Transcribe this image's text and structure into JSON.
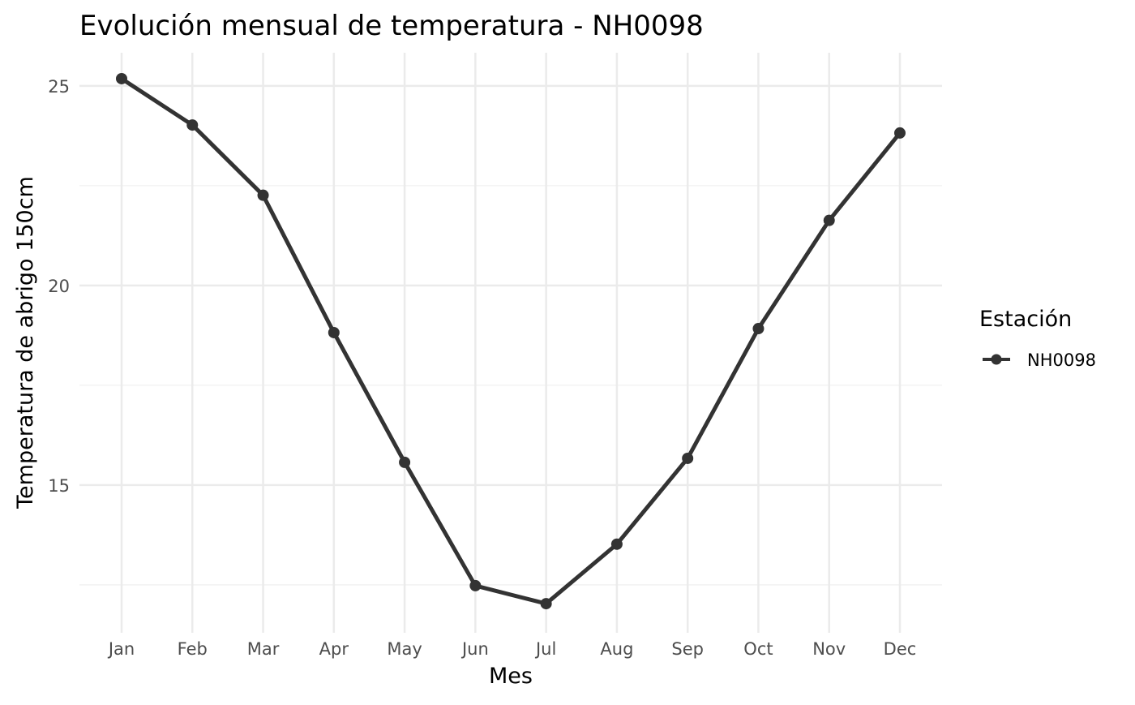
{
  "chart_data": {
    "type": "line",
    "title": "Evolución mensual de temperatura - NH0098",
    "xlabel": "Mes",
    "ylabel": "Temperatura de abrigo 150cm",
    "categories": [
      "Jan",
      "Feb",
      "Mar",
      "Apr",
      "May",
      "Jun",
      "Jul",
      "Aug",
      "Sep",
      "Oct",
      "Nov",
      "Dec"
    ],
    "series": [
      {
        "name": "NH0098",
        "color": "#333333",
        "values": [
          25.18,
          24.02,
          22.26,
          18.82,
          15.57,
          12.48,
          12.03,
          13.52,
          15.67,
          18.92,
          21.63,
          23.82
        ]
      }
    ],
    "yticks": [
      15,
      20,
      25
    ],
    "yticks_minor": [
      12.5,
      17.5,
      22.5
    ],
    "ylim": [
      11.3,
      25.83
    ],
    "grid": true,
    "legend": {
      "title": "Estación",
      "placement": "right"
    }
  }
}
